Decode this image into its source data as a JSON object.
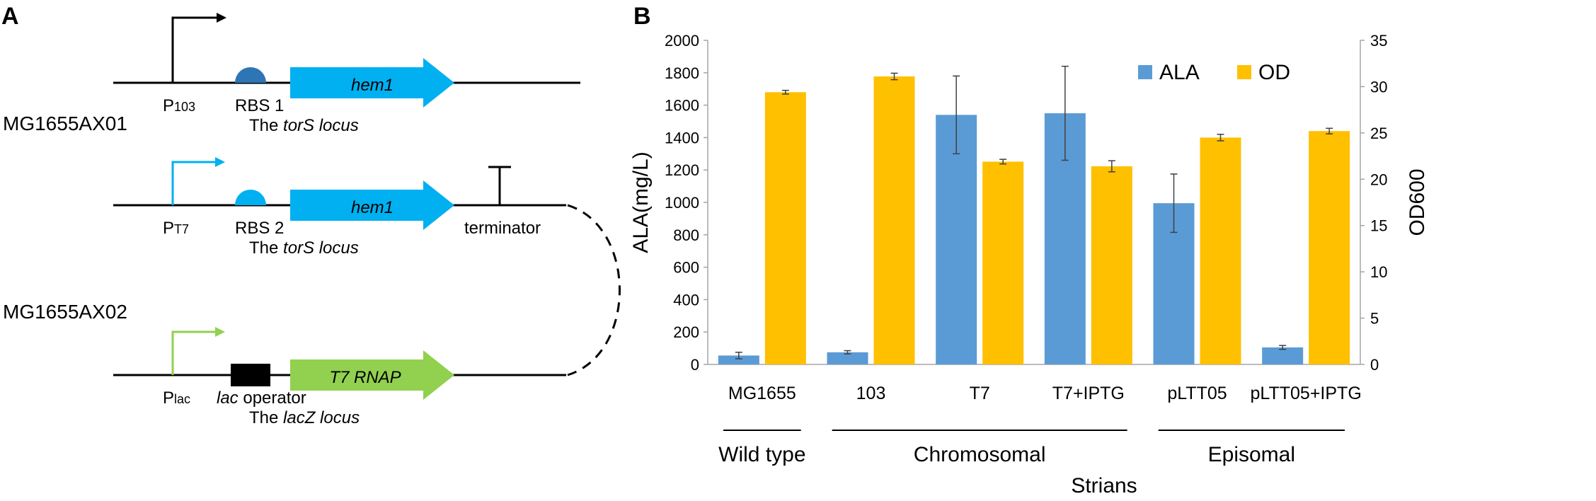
{
  "panel_a": {
    "label": "A",
    "construct1": {
      "strain": "MG1655AX01",
      "promoter": "P",
      "promoter_sub": "103",
      "rbs": "RBS 1",
      "gene": "hem1",
      "locus_prefix": "The ",
      "locus_name": "torS locus"
    },
    "construct2": {
      "strain": "MG1655AX02",
      "promoter": "P",
      "promoter_sub": "T7",
      "rbs": "RBS 2",
      "gene": "hem1",
      "terminator": "terminator",
      "locus_prefix": "The ",
      "locus_name": "torS locus"
    },
    "construct3": {
      "promoter": "P",
      "promoter_sub": "lac",
      "operator_italic": "lac",
      "operator_rest": " operator",
      "gene": "T7 RNAP",
      "locus_prefix": "The ",
      "locus_name": "lacZ locus"
    },
    "colors": {
      "black": "#000000",
      "hem1_arrow": "#00B0F0",
      "rbs1": "#2E75B6",
      "rbs2": "#00B0F0",
      "pt7_arrow": "#00B0F0",
      "plac_arrow": "#92D050",
      "t7rnap_arrow": "#92D050"
    }
  },
  "panel_b": {
    "label": "B",
    "groups": [
      {
        "name": "Wild type",
        "start": 0,
        "end": 0
      },
      {
        "name": "Chromosomal",
        "start": 1,
        "end": 3
      },
      {
        "name": "Episomal",
        "start": 4,
        "end": 5
      }
    ]
  },
  "chart_data": {
    "type": "bar",
    "categories": [
      "MG1655",
      "103",
      "T7",
      "T7+IPTG",
      "pLTT05",
      "pLTT05+IPTG"
    ],
    "series": [
      {
        "name": "ALA",
        "axis": "left",
        "color": "#5B9BD5",
        "values": [
          55,
          75,
          1540,
          1550,
          995,
          105
        ],
        "errors": [
          20,
          10,
          240,
          290,
          180,
          12
        ]
      },
      {
        "name": "OD",
        "axis": "right",
        "color": "#FFC000",
        "values": [
          29.4,
          31.1,
          21.9,
          21.4,
          24.5,
          25.2
        ],
        "errors": [
          0.2,
          0.35,
          0.25,
          0.6,
          0.35,
          0.3
        ]
      }
    ],
    "xlabel": "Strians",
    "ylabel_left": "ALA(mg/L)",
    "ylabel_right": "OD600",
    "ylim_left": [
      0,
      2000
    ],
    "yticks_left": [
      0,
      200,
      400,
      600,
      800,
      1000,
      1200,
      1400,
      1600,
      1800,
      2000
    ],
    "ylim_right": [
      0,
      35
    ],
    "yticks_right": [
      0,
      5,
      10,
      15,
      20,
      25,
      30,
      35
    ],
    "legend_position": "top-right",
    "grid": false
  }
}
